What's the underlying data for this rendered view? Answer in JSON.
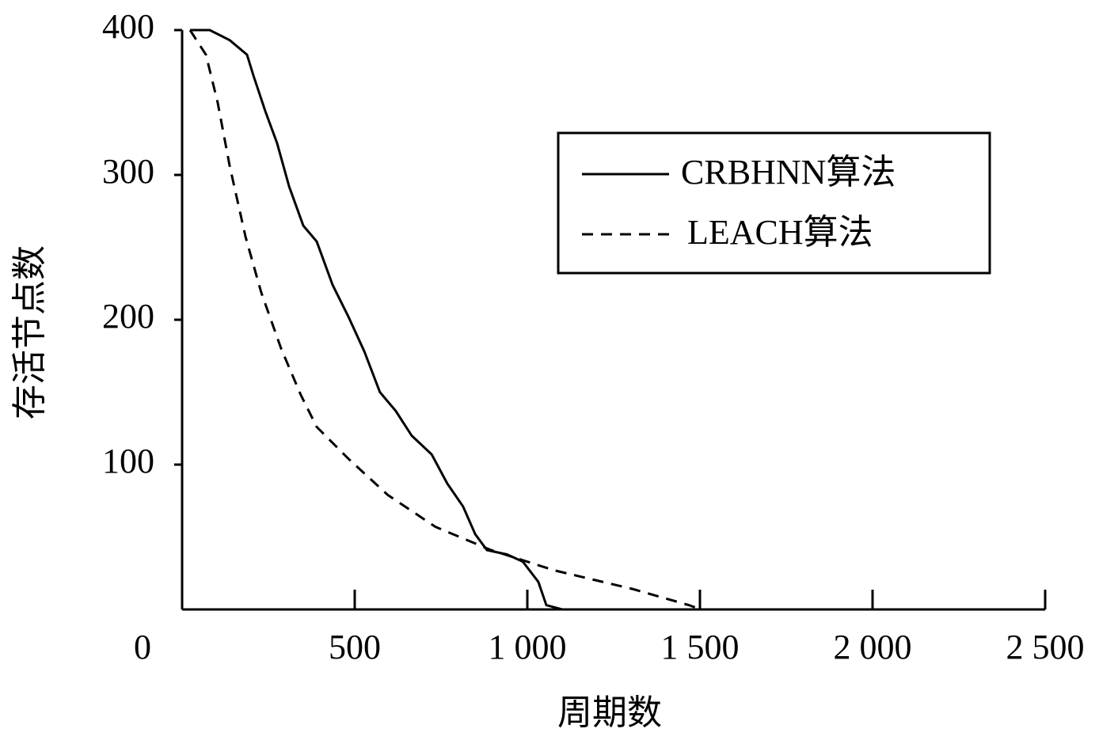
{
  "chart_data": {
    "type": "line",
    "x_label": "周期数",
    "y_label": "存活节点数",
    "xlim": [
      0,
      2500
    ],
    "xticks": [
      0,
      500,
      {
        "value": 1000,
        "label": "1 000"
      },
      {
        "value": 1500,
        "label": "1 500"
      },
      {
        "value": 2000,
        "label": "2 000"
      },
      {
        "value": 2500,
        "label": "2 500"
      }
    ],
    "ylim": [
      0,
      400
    ],
    "yticks": [
      100,
      200,
      300,
      400
    ],
    "legend": "upper right",
    "series": [
      {
        "name": "CRBHNN算法",
        "color": "#000000",
        "dash": "solid",
        "x": [
          23,
          80,
          138,
          188,
          206,
          241,
          275,
          310,
          351,
          390,
          436,
          482,
          528,
          573,
          619,
          665,
          723,
          768,
          814,
          849,
          883,
          941,
          987,
          1032,
          1055,
          1101,
          2500
        ],
        "values": [
          400,
          400,
          393,
          383,
          369,
          344,
          322,
          292,
          265,
          254,
          224,
          202,
          178,
          150,
          137,
          120,
          107,
          87,
          71,
          52,
          41,
          38,
          33,
          19,
          3,
          0,
          0
        ]
      },
      {
        "name": "LEACH算法",
        "color": "#000000",
        "dash": "dashed",
        "x": [
          23,
          69,
          103,
          138,
          184,
          229,
          287,
          344,
          390,
          482,
          596,
          734,
          895,
          1078,
          1307,
          1468,
          1502,
          2500
        ],
        "values": [
          400,
          383,
          350,
          306,
          257,
          219,
          180,
          148,
          126,
          104,
          79,
          57,
          41,
          27,
          14,
          3,
          0,
          0
        ]
      }
    ]
  }
}
